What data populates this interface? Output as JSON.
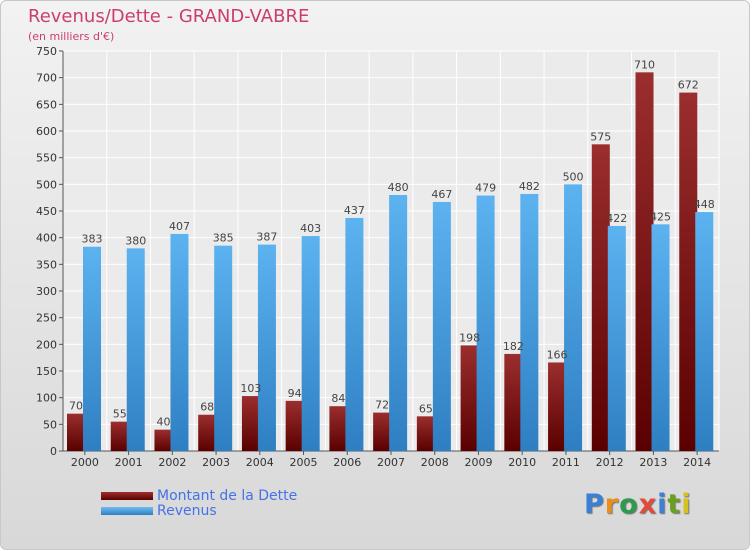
{
  "title": "Revenus/Dette - GRAND-VABRE",
  "subtitle": "(en milliers d'€)",
  "logo": {
    "text": "Proxiti",
    "letter_colors": [
      "#3b7fd6",
      "#e88e1a",
      "#2f9a4e",
      "#e14b3a",
      "#3b7fd6",
      "#6aa020",
      "#d6c11f"
    ]
  },
  "colors": {
    "dette": "#8b1a1a",
    "revenus": "#4fa3e6",
    "title": "#cc3d6e",
    "legend_text": "#4472e8"
  },
  "legend": [
    {
      "label": "Montant de la Dette",
      "color": "#7a1212"
    },
    {
      "label": "Revenus",
      "color": "#4fa3e6"
    }
  ],
  "chart_data": {
    "type": "bar",
    "categories": [
      "2000",
      "2001",
      "2002",
      "2003",
      "2004",
      "2005",
      "2006",
      "2007",
      "2008",
      "2009",
      "2010",
      "2011",
      "2012",
      "2013",
      "2014"
    ],
    "series": [
      {
        "name": "Montant de la Dette",
        "values": [
          70,
          55,
          40,
          68,
          103,
          94,
          84,
          72,
          65,
          198,
          182,
          166,
          575,
          710,
          672
        ]
      },
      {
        "name": "Revenus",
        "values": [
          383,
          380,
          407,
          385,
          387,
          403,
          437,
          480,
          467,
          479,
          482,
          500,
          422,
          425,
          448
        ]
      }
    ],
    "ylim": [
      0,
      750
    ],
    "yticks": [
      0,
      50,
      100,
      150,
      200,
      250,
      300,
      350,
      400,
      450,
      500,
      550,
      600,
      650,
      700,
      750
    ],
    "grid": true,
    "legend_position": "bottom-left"
  }
}
